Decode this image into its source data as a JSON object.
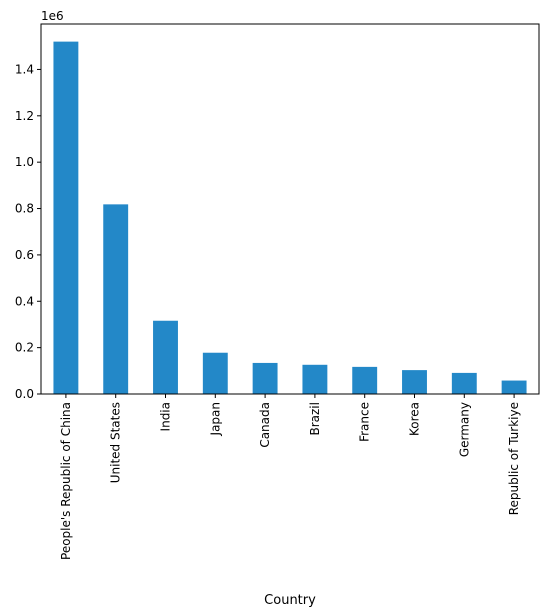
{
  "chart_data": {
    "type": "bar",
    "title": "",
    "xlabel": "Country",
    "ylabel": "",
    "offset_label": "1e6",
    "categories": [
      "People's Republic of China",
      "United States",
      "India",
      "Japan",
      "Canada",
      "Brazil",
      "France",
      "Korea",
      "Germany",
      "Republic of Turkiye"
    ],
    "values": [
      1520000,
      818000,
      316000,
      178000,
      134000,
      126000,
      117000,
      103000,
      91000,
      58000
    ],
    "ylim": [
      0,
      1596000
    ],
    "yticks": [
      0,
      200000,
      400000,
      600000,
      800000,
      1000000,
      1200000,
      1400000
    ],
    "ytick_labels": [
      "0.0",
      "0.2",
      "0.4",
      "0.6",
      "0.8",
      "1.0",
      "1.2",
      "1.4"
    ],
    "grid": false,
    "legend": "none",
    "bar_color": "#2388c8"
  }
}
